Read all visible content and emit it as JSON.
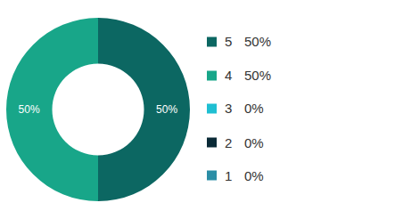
{
  "chart_data": {
    "type": "pie",
    "categories": [
      "5",
      "4",
      "3",
      "2",
      "1"
    ],
    "values": [
      50,
      50,
      0,
      0,
      0
    ],
    "value_labels": [
      "50%",
      "50%",
      "0%",
      "0%",
      "0%"
    ],
    "colors": [
      "#0c6762",
      "#18a689",
      "#1fbfd2",
      "#0a2a36",
      "#2b8ea6"
    ],
    "data_labels": true,
    "legend": "right"
  }
}
